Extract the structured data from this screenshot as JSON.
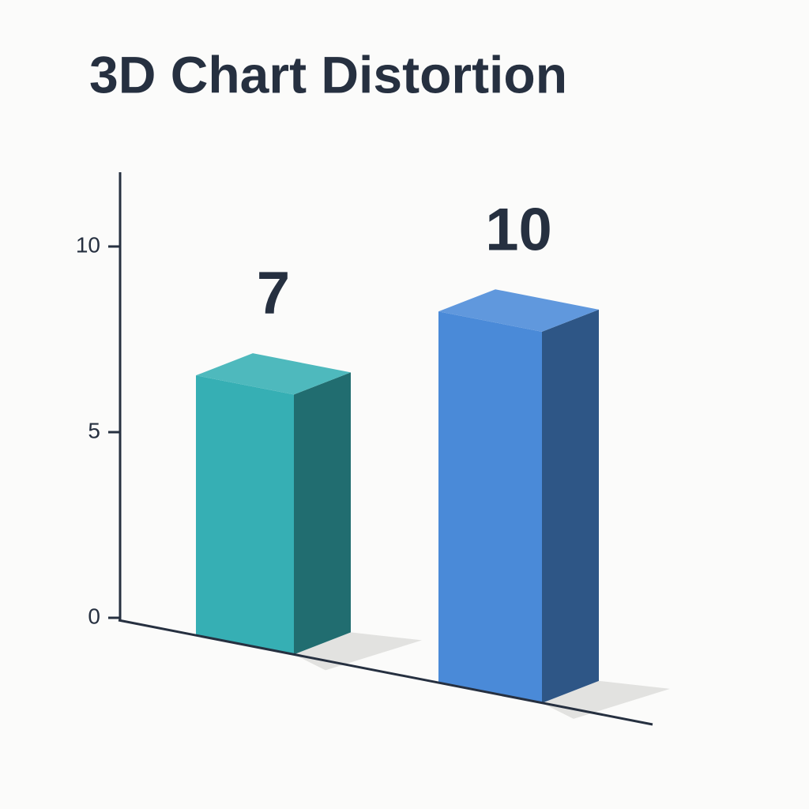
{
  "chart_data": {
    "type": "bar3d",
    "title": "3D Chart Distortion",
    "values": [
      7,
      10
    ],
    "colors": [
      "#36afb4",
      "#4a8ad8"
    ],
    "ylim": [
      0,
      12
    ],
    "yticks": [
      0,
      5,
      10
    ]
  }
}
